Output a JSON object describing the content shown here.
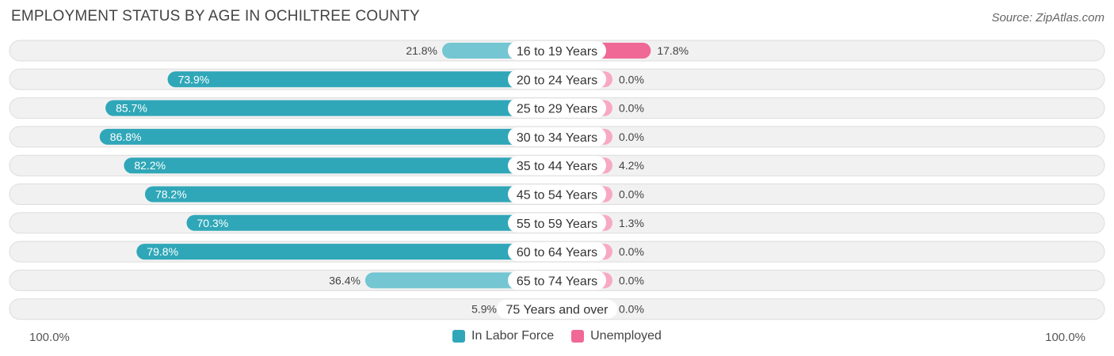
{
  "title": "EMPLOYMENT STATUS BY AGE IN OCHILTREE COUNTY",
  "source": "Source: ZipAtlas.com",
  "colors": {
    "labor_strong": "#2fa7b8",
    "labor_light": "#74c6d2",
    "unemp_strong": "#f06895",
    "unemp_light": "#f7a9c3",
    "row_bg": "#f1f1f1",
    "row_border": "#dddddd"
  },
  "axis": {
    "left_label": "100.0%",
    "right_label": "100.0%"
  },
  "legend": {
    "labor": "In Labor Force",
    "unemployed": "Unemployed"
  },
  "chart_data": {
    "type": "bar",
    "orientation": "horizontal-diverging",
    "title": "EMPLOYMENT STATUS BY AGE IN OCHILTREE COUNTY",
    "xlim": [
      -100,
      100
    ],
    "categories": [
      "16 to 19 Years",
      "20 to 24 Years",
      "25 to 29 Years",
      "30 to 34 Years",
      "35 to 44 Years",
      "45 to 54 Years",
      "55 to 59 Years",
      "60 to 64 Years",
      "65 to 74 Years",
      "75 Years and over"
    ],
    "series": [
      {
        "name": "In Labor Force",
        "values": [
          21.8,
          73.9,
          85.7,
          86.8,
          82.2,
          78.2,
          70.3,
          79.8,
          36.4,
          5.9
        ],
        "labels": [
          "21.8%",
          "73.9%",
          "85.7%",
          "86.8%",
          "82.2%",
          "78.2%",
          "70.3%",
          "79.8%",
          "36.4%",
          "5.9%"
        ]
      },
      {
        "name": "Unemployed",
        "values": [
          17.8,
          0.0,
          0.0,
          0.0,
          4.2,
          0.0,
          1.3,
          0.0,
          0.0,
          0.0
        ],
        "labels": [
          "17.8%",
          "0.0%",
          "0.0%",
          "0.0%",
          "4.2%",
          "0.0%",
          "1.3%",
          "0.0%",
          "0.0%",
          "0.0%"
        ]
      }
    ]
  }
}
